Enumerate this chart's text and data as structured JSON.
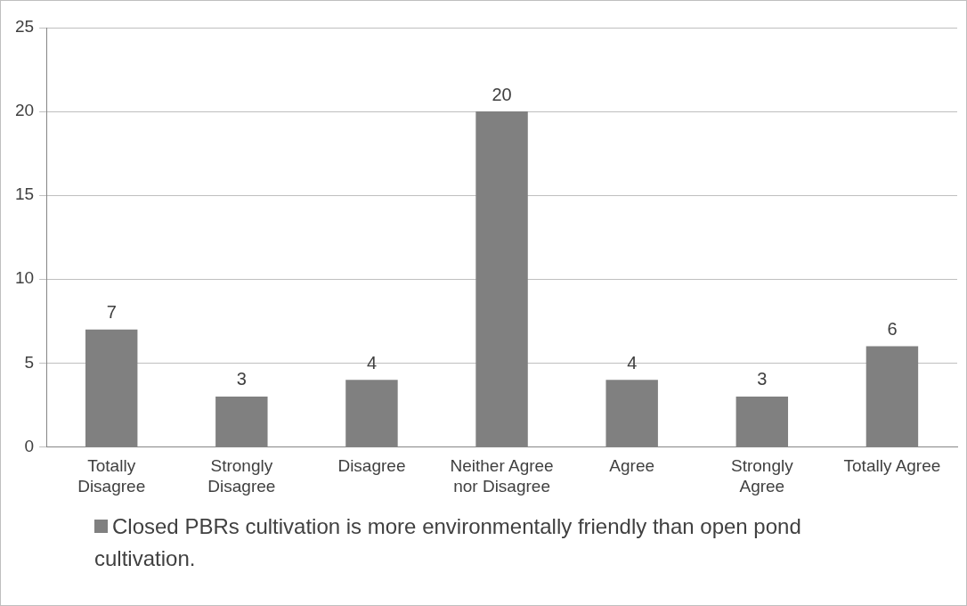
{
  "chart_data": {
    "type": "bar",
    "categories": [
      "Totally Disagree",
      "Strongly Disagree",
      "Disagree",
      "Neither Agree nor Disagree",
      "Agree",
      "Strongly Agree",
      "Totally Agree"
    ],
    "series": [
      {
        "name": "Closed PBRs cultivation is more environmentally friendly than open pond cultivation.",
        "color": "#808080",
        "values": [
          7,
          3,
          4,
          20,
          4,
          3,
          6
        ]
      }
    ],
    "ylim": [
      0,
      25
    ],
    "yticks": [
      0,
      5,
      10,
      15,
      20,
      25
    ],
    "grid": "y",
    "legend": "bottom",
    "data_labels": true
  }
}
